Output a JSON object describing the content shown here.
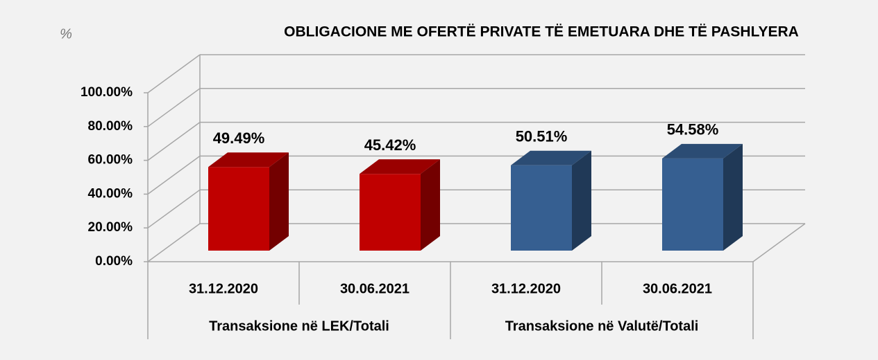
{
  "chart_data": {
    "type": "bar3d",
    "title": "OBLIGACIONE ME OFERTË PRIVATE TË EMETUARA DHE TË PASHLYERA",
    "unit_label": "%",
    "categories": [
      "31.12.2020",
      "30.06.2021",
      "31.12.2020",
      "30.06.2021"
    ],
    "groups": [
      "Transaksione në LEK/Totali",
      "Transaksione në Valutë/Totali"
    ],
    "values": [
      49.49,
      45.42,
      50.51,
      54.58
    ],
    "value_labels": [
      "49.49%",
      "45.42%",
      "50.51%",
      "54.58%"
    ],
    "colors": [
      "#c00000",
      "#c00000",
      "#365f91",
      "#365f91"
    ],
    "ylim": [
      0,
      100
    ],
    "yticks": [
      {
        "value": 0,
        "label": "0.00%"
      },
      {
        "value": 20,
        "label": "20.00%"
      },
      {
        "value": 40,
        "label": "40.00%"
      },
      {
        "value": 60,
        "label": "60.00%"
      },
      {
        "value": 80,
        "label": "80.00%"
      },
      {
        "value": 100,
        "label": "100.00%"
      }
    ],
    "grid": true
  }
}
